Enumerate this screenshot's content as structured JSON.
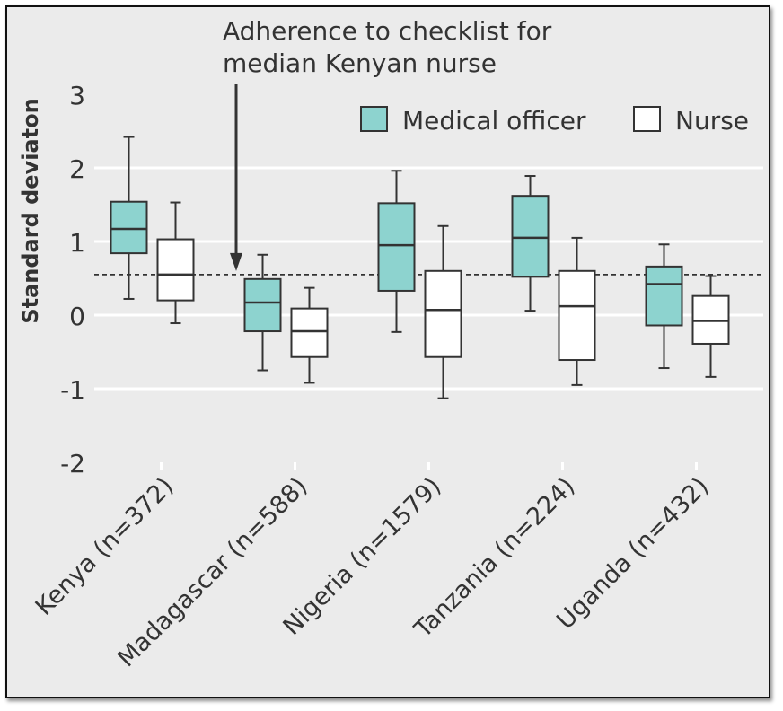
{
  "chart_data": {
    "type": "box",
    "ylabel": "Standard deviaton",
    "ylim": [
      -2,
      3
    ],
    "yticks": [
      "3",
      "2",
      "1",
      "0",
      "-1",
      "-2"
    ],
    "categories": [
      "Kenya (n=372)",
      "Madagascar (n=588)",
      "Nigeria (n=1579)",
      "Tanzania (n=224)",
      "Uganda (n=432)"
    ],
    "legend": {
      "position": "top-right"
    },
    "reference_line": {
      "value": 0.55,
      "annotation": [
        "Adherence to checklist for",
        "median Kenyan nurse"
      ]
    },
    "series": [
      {
        "name": "Medical officer",
        "color": "#8dd3cf",
        "boxes": [
          {
            "min": 0.22,
            "q1": 0.84,
            "median": 1.17,
            "q3": 1.54,
            "max": 2.42
          },
          {
            "min": -0.75,
            "q1": -0.22,
            "median": 0.17,
            "q3": 0.49,
            "max": 0.82
          },
          {
            "min": -0.23,
            "q1": 0.33,
            "median": 0.95,
            "q3": 1.52,
            "max": 1.96
          },
          {
            "min": 0.06,
            "q1": 0.52,
            "median": 1.05,
            "q3": 1.62,
            "max": 1.89
          },
          {
            "min": -0.72,
            "q1": -0.14,
            "median": 0.42,
            "q3": 0.66,
            "max": 0.96
          }
        ]
      },
      {
        "name": "Nurse",
        "color": "#ffffff",
        "boxes": [
          {
            "min": -0.11,
            "q1": 0.2,
            "median": 0.55,
            "q3": 1.03,
            "max": 1.53
          },
          {
            "min": -0.92,
            "q1": -0.57,
            "median": -0.22,
            "q3": 0.09,
            "max": 0.37
          },
          {
            "min": -1.13,
            "q1": -0.57,
            "median": 0.07,
            "q3": 0.6,
            "max": 1.21
          },
          {
            "min": -0.95,
            "q1": -0.61,
            "median": 0.12,
            "q3": 0.6,
            "max": 1.05
          },
          {
            "min": -0.84,
            "q1": -0.39,
            "median": -0.08,
            "q3": 0.26,
            "max": 0.53
          }
        ]
      }
    ]
  }
}
